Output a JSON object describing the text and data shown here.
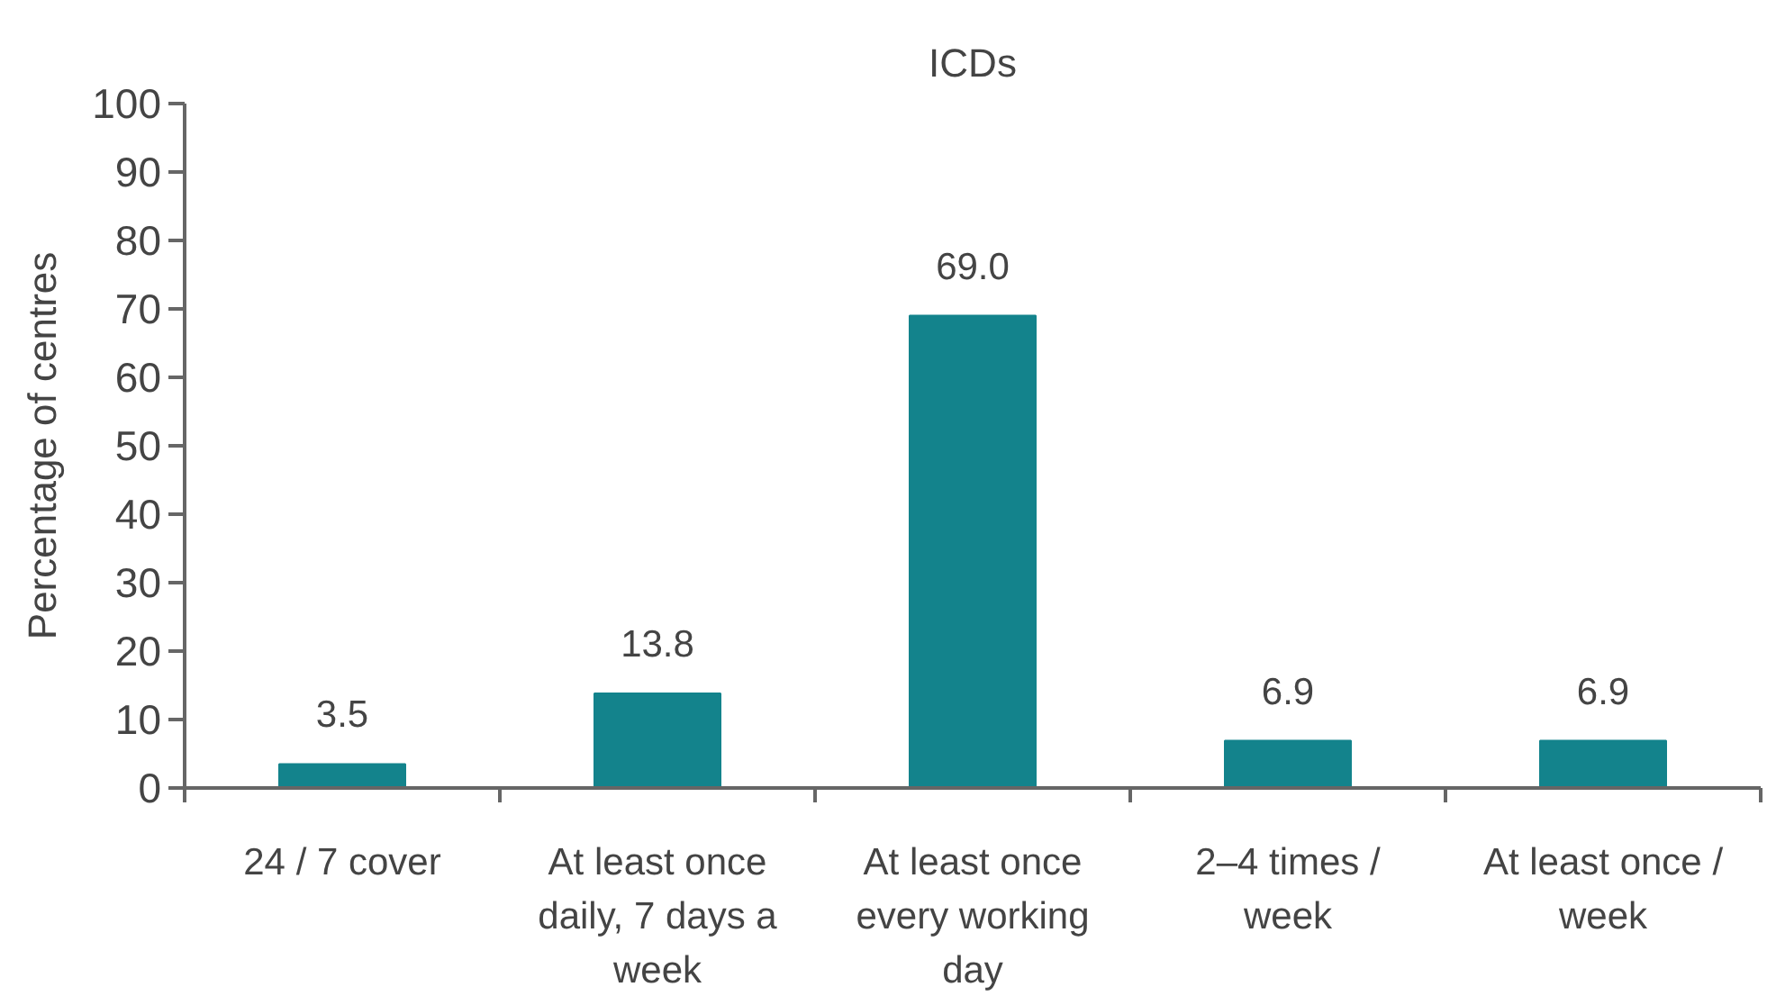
{
  "chart_data": {
    "type": "bar",
    "title": "ICDs",
    "ylabel": "Percentage of centres",
    "categories": [
      "24 / 7 cover",
      "At least once daily, 7 days a week",
      "At least once every working day",
      "2–4 times / week",
      "At least once / week"
    ],
    "values": [
      3.5,
      13.8,
      69.0,
      6.9,
      6.9
    ],
    "value_labels": [
      "3.5",
      "13.8",
      "69.0",
      "6.9",
      "6.9"
    ],
    "color": "#13838c",
    "ylim": [
      0,
      100
    ],
    "yticks": [
      0,
      10,
      20,
      30,
      40,
      50,
      60,
      70,
      80,
      90,
      100
    ],
    "grid": false
  }
}
